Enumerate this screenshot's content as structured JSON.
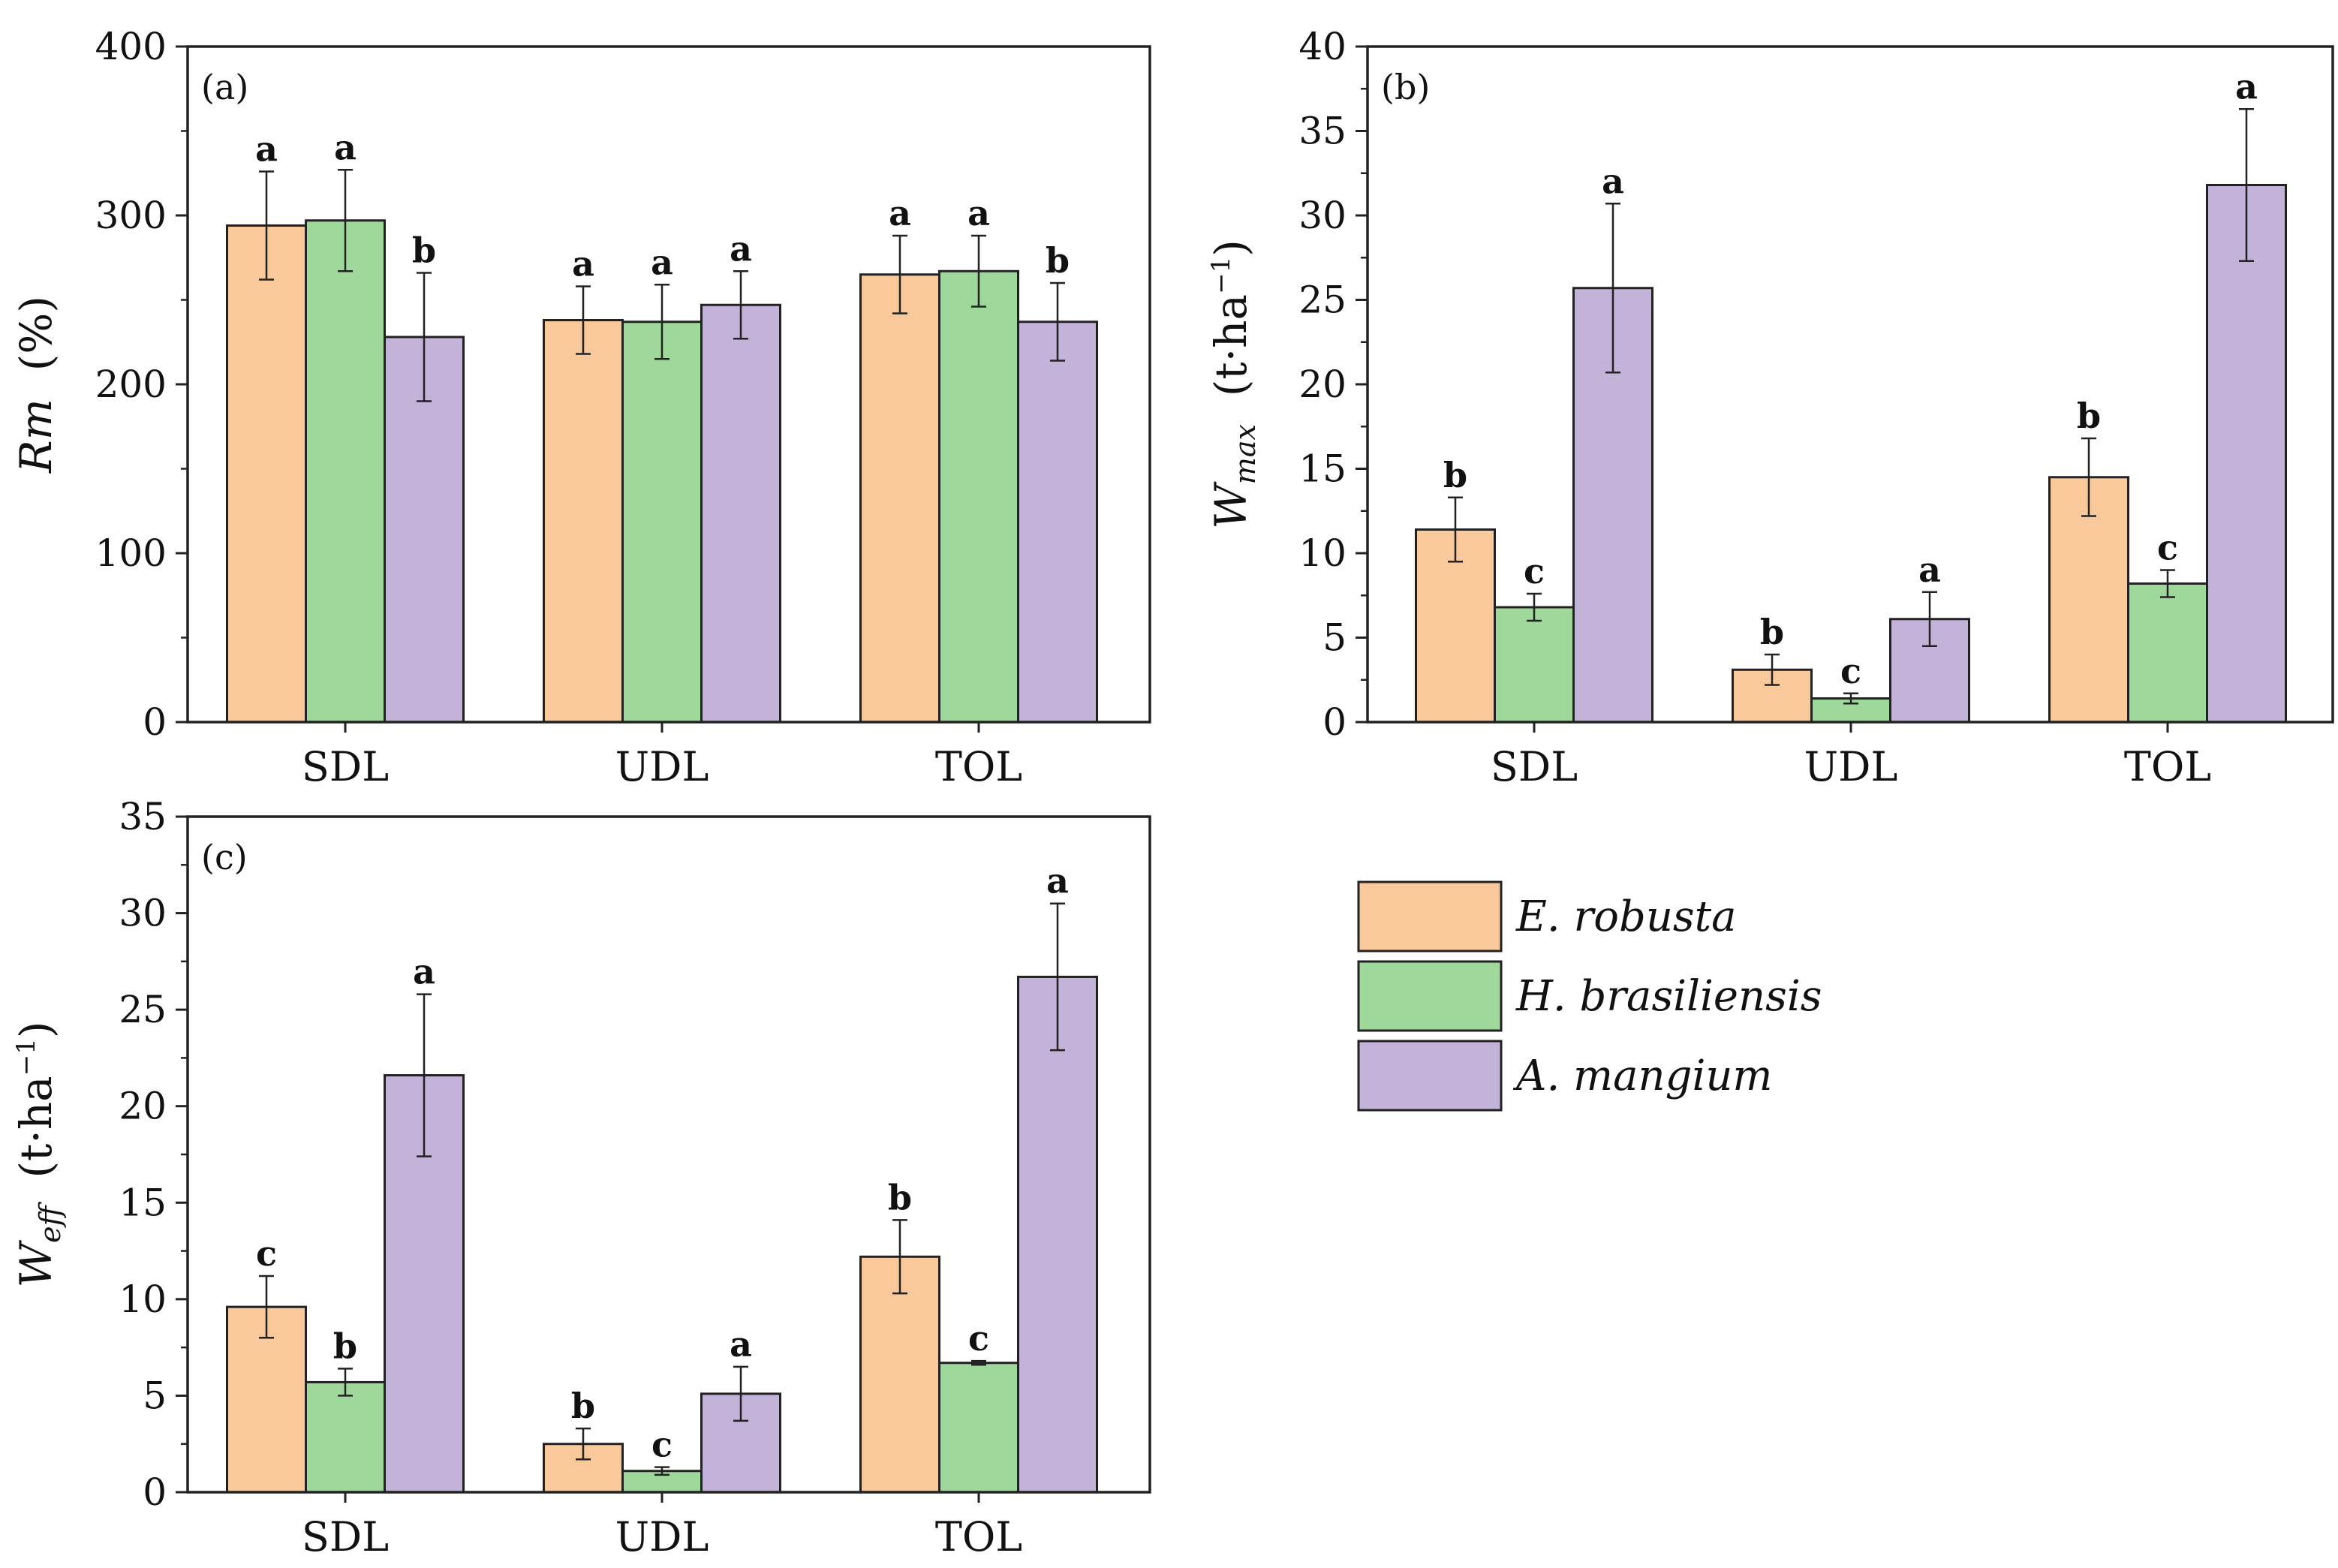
{
  "colors": {
    "E. robusta": "#f9c89b",
    "H. brasiliensis": "#9fd89b",
    "A. mangium": "#c4b3d8"
  },
  "legend": [
    "E. robusta",
    "H. brasiliensis",
    "A. mangium"
  ],
  "chart_data": [
    {
      "type": "bar",
      "panel": "(a)",
      "categories": [
        "SDL",
        "UDL",
        "TOL"
      ],
      "ylabel_main": "Rm",
      "ylabel_rest": "(%)",
      "ylim": [
        0,
        400
      ],
      "yticks": [
        0,
        100,
        200,
        300,
        400
      ],
      "series": [
        {
          "name": "E. robusta",
          "values": [
            294,
            238,
            265
          ],
          "errors": [
            32,
            20,
            23
          ],
          "letters": [
            "a",
            "a",
            "a"
          ]
        },
        {
          "name": "H. brasiliensis",
          "values": [
            297,
            237,
            267
          ],
          "errors": [
            30,
            22,
            21
          ],
          "letters": [
            "a",
            "a",
            "a"
          ]
        },
        {
          "name": "A. mangium",
          "values": [
            228,
            247,
            237
          ],
          "errors": [
            38,
            20,
            23
          ],
          "letters": [
            "b",
            "a",
            "b"
          ]
        }
      ]
    },
    {
      "type": "bar",
      "panel": "(b)",
      "categories": [
        "SDL",
        "UDL",
        "TOL"
      ],
      "ylabel_main": "W",
      "ylabel_sub": "max",
      "ylabel_rest": "(t·ha",
      "ylabel_sup": "−1",
      "ylabel_close": ")",
      "ylim": [
        0,
        40
      ],
      "yticks": [
        0,
        5,
        10,
        15,
        20,
        25,
        30,
        35,
        40
      ],
      "series": [
        {
          "name": "E. robusta",
          "values": [
            11.4,
            3.1,
            14.5
          ],
          "errors": [
            1.9,
            0.9,
            2.3
          ],
          "letters": [
            "b",
            "b",
            "b"
          ]
        },
        {
          "name": "H. brasiliensis",
          "values": [
            6.8,
            1.4,
            8.2
          ],
          "errors": [
            0.8,
            0.3,
            0.8
          ],
          "letters": [
            "c",
            "c",
            "c"
          ]
        },
        {
          "name": "A. mangium",
          "values": [
            25.7,
            6.1,
            31.8
          ],
          "errors": [
            5.0,
            1.6,
            4.5
          ],
          "letters": [
            "a",
            "a",
            "a"
          ]
        }
      ]
    },
    {
      "type": "bar",
      "panel": "(c)",
      "categories": [
        "SDL",
        "UDL",
        "TOL"
      ],
      "ylabel_main": "W",
      "ylabel_sub": "eff",
      "ylabel_rest": "(t·ha",
      "ylabel_sup": "−1",
      "ylabel_close": ")",
      "ylim": [
        0,
        35
      ],
      "yticks": [
        0,
        5,
        10,
        15,
        20,
        25,
        30,
        35
      ],
      "series": [
        {
          "name": "E. robusta",
          "values": [
            9.6,
            2.5,
            12.2
          ],
          "errors": [
            1.6,
            0.8,
            1.9
          ],
          "letters": [
            "c",
            "b",
            "b"
          ]
        },
        {
          "name": "H. brasiliensis",
          "values": [
            5.7,
            1.1,
            6.7
          ],
          "errors": [
            0.7,
            0.2,
            0.1
          ],
          "letters": [
            "b",
            "c",
            "c"
          ]
        },
        {
          "name": "A. mangium",
          "values": [
            21.6,
            5.1,
            26.7
          ],
          "errors": [
            4.2,
            1.4,
            3.8
          ],
          "letters": [
            "a",
            "a",
            "a"
          ]
        }
      ]
    }
  ]
}
